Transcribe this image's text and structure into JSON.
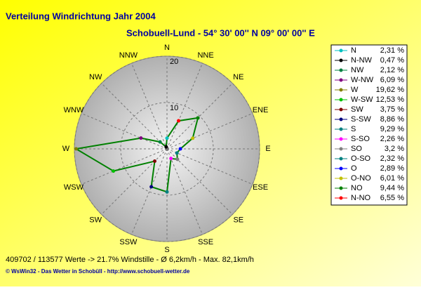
{
  "chart_data": {
    "type": "radar",
    "title": "Verteilung Windrichtung   Jahr 2004",
    "subtitle": "Schobuell-Lund - 54° 30' 00''  N  09° 00' 00'' E",
    "categories": [
      "N",
      "NNW",
      "NW",
      "WNW",
      "W",
      "WSW",
      "SW",
      "SSW",
      "S",
      "SSE",
      "SE",
      "ESE",
      "E",
      "ENE",
      "NE",
      "NNE"
    ],
    "legend_names": [
      "N",
      "N-NW",
      "NW",
      "W-NW",
      "W",
      "W-SW",
      "SW",
      "S-SW",
      "S",
      "S-SO",
      "SO",
      "O-SO",
      "O",
      "O-NO",
      "NO",
      "N-NO"
    ],
    "values": [
      2.31,
      0.47,
      2.12,
      6.09,
      19.62,
      12.53,
      3.75,
      8.86,
      9.29,
      2.26,
      3.2,
      2.32,
      2.89,
      6.01,
      9.44,
      6.55
    ],
    "value_labels": [
      "2,31 %",
      "0,47 %",
      "2,12 %",
      "6,09 %",
      "19,62 %",
      "12,53 %",
      "3,75 %",
      "8,86 %",
      "9,29 %",
      "2,26 %",
      "3,2 %",
      "2,32 %",
      "2,89 %",
      "6,01 %",
      "9,44 %",
      "6,55 %"
    ],
    "point_colors": [
      "#00c0c0",
      "#000000",
      "#008040",
      "#800080",
      "#808000",
      "#00c000",
      "#800000",
      "#000080",
      "#008080",
      "#ff00ff",
      "#808080",
      "#008080",
      "#0000ff",
      "#c0c000",
      "#008000",
      "#ff0000"
    ],
    "line_color": "#008000",
    "rlim": [
      0,
      20
    ],
    "rticks": [
      10,
      20
    ],
    "footer": "409702 / 113577 Werte  -> 21.7% Windstille   -   Ø 6,2km/h  -  Max. 82,1km/h",
    "credit": "© WsWin32  -  Das Wetter in Schobüll  -  http://www.schobuell-wetter.de"
  }
}
